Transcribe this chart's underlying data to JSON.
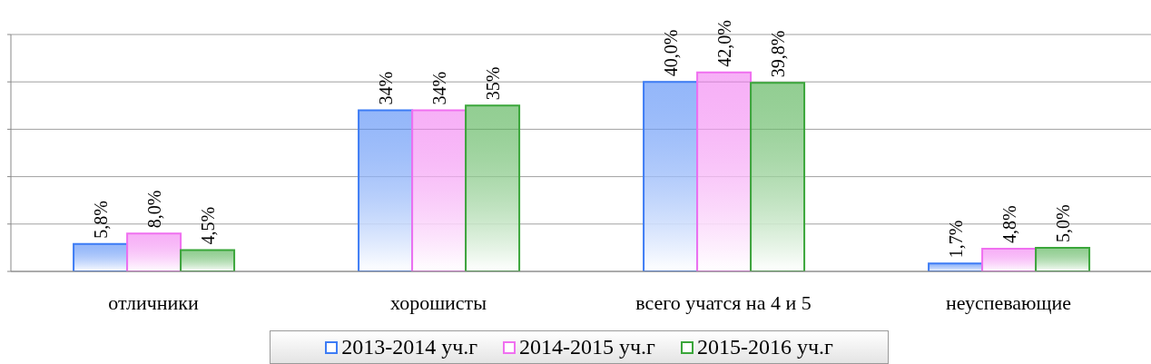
{
  "chart_data": {
    "type": "bar",
    "categories": [
      "отличники",
      "хорошисты",
      "всего учатся на 4 и 5",
      "неуспевающие"
    ],
    "series": [
      {
        "name": "2013-2014 уч.г",
        "color": "#3d7cf5",
        "values": [
          5.8,
          34,
          40.0,
          1.7
        ],
        "value_labels": [
          "5,8%",
          "34%",
          "40,0%",
          "1,7%"
        ]
      },
      {
        "name": "2014-2015 уч.г",
        "color": "#f070f0",
        "values": [
          8.0,
          34,
          42.0,
          4.8
        ],
        "value_labels": [
          "8,0%",
          "34%",
          "42,0%",
          "4,8%"
        ]
      },
      {
        "name": "2015-2016 уч.г",
        "color": "#3aa63a",
        "values": [
          4.5,
          35,
          39.8,
          5.0
        ],
        "value_labels": [
          "4,5%",
          "35%",
          "39,8%",
          "5,0%"
        ]
      }
    ],
    "ylim": [
      0,
      50
    ],
    "grid": "y",
    "legend": "bottom",
    "tick_labels": "x"
  }
}
